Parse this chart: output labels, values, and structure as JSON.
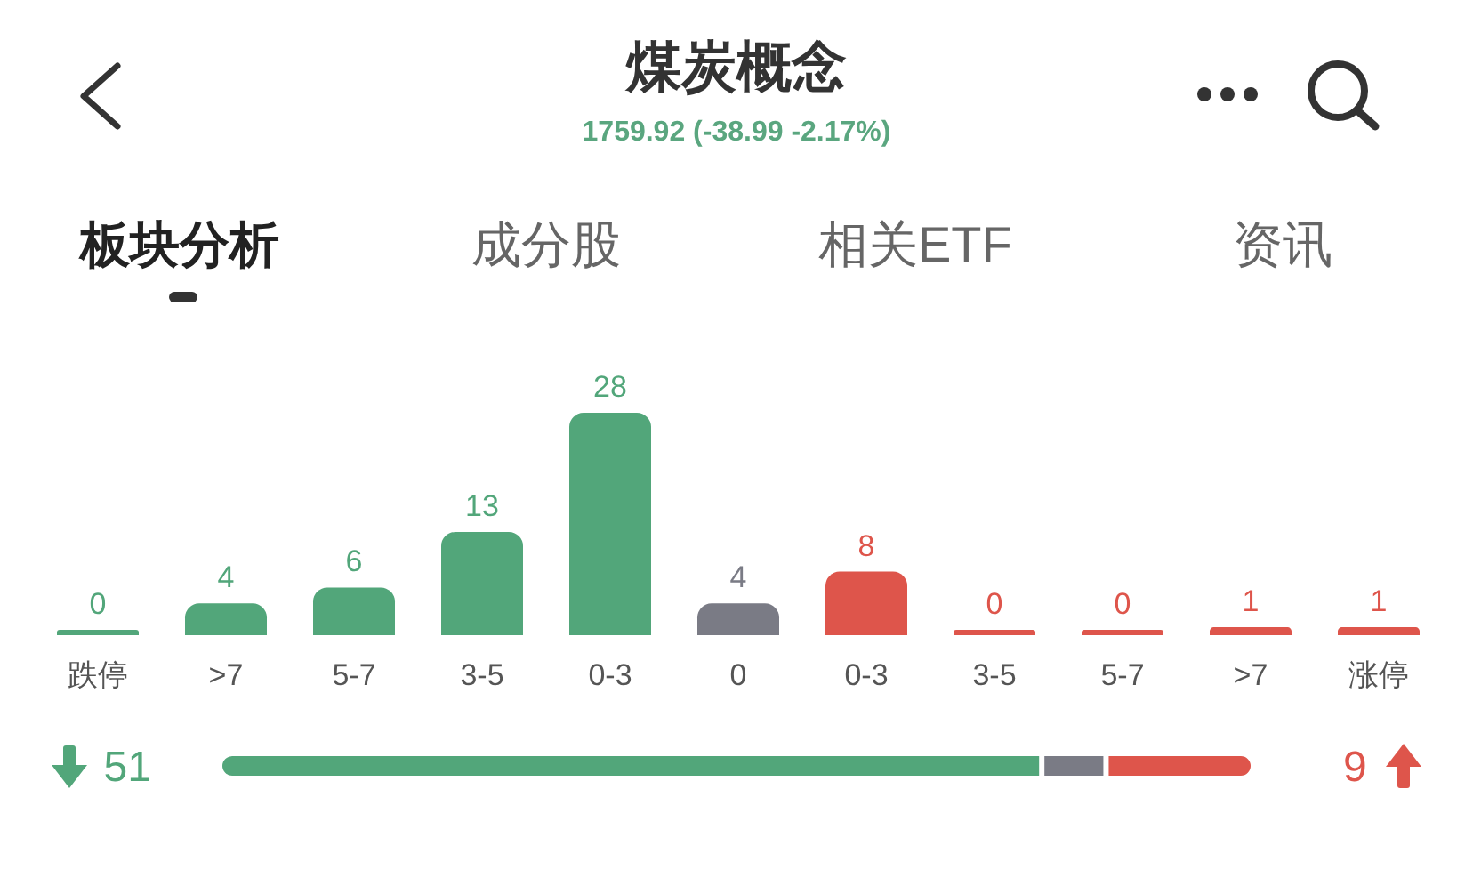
{
  "chart_data": [
    {
      "type": "bar",
      "title": "煤炭概念",
      "subtitle": "1759.92 (-38.99 -2.17%)",
      "annotations": [
        "板块分析",
        "成分股",
        "相关ETF",
        "资讯"
      ],
      "categories": [
        "跌停",
        ">7",
        "5-7",
        "3-5",
        "0-3",
        "0",
        "0-3",
        "3-5",
        "5-7",
        ">7",
        "涨停"
      ],
      "values": [
        0,
        4,
        6,
        13,
        28,
        4,
        8,
        0,
        0,
        1,
        1
      ],
      "colors": [
        "#52a67a",
        "#52a67a",
        "#52a67a",
        "#52a67a",
        "#52a67a",
        "#7a7b85",
        "#de554b",
        "#de554b",
        "#de554b",
        "#de554b",
        "#de554b"
      ],
      "data_labels": true,
      "tick_labels": "x"
    },
    {
      "type": "bar",
      "orientation": "horizontal",
      "stacked": true,
      "categories": [
        null
      ],
      "series": [
        {
          "color": "#52a67a",
          "values": [
            51
          ],
          "value_labels": [
            "51"
          ]
        },
        {
          "color": "#7a7b85",
          "values": [
            4
          ]
        },
        {
          "color": "#de554b",
          "values": [
            9
          ],
          "value_labels": [
            "9"
          ]
        }
      ],
      "tick_labels": false
    }
  ]
}
